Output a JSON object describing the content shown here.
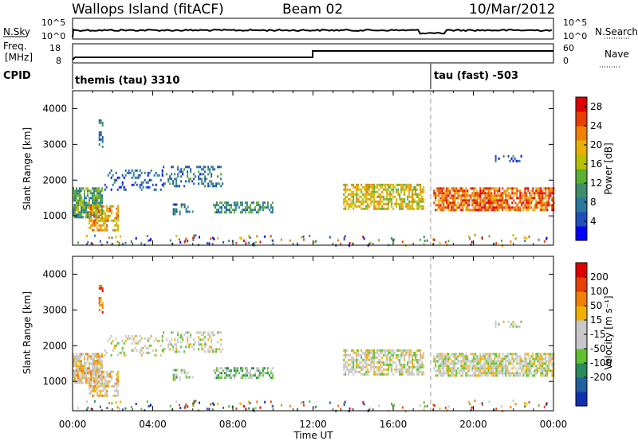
{
  "header": {
    "station": "Wallops Island (fitACF)",
    "beam": "Beam 02",
    "date": "10/Mar/2012"
  },
  "noise_panel": {
    "left_label": "N.Sky",
    "left_ticks": [
      "10^5",
      "10^0"
    ],
    "right_label": "N.Search",
    "right_ticks": [
      "10^5",
      "10^0"
    ]
  },
  "freq_panel": {
    "left_label_line1": "Freq.",
    "left_label_line2": "[MHz]",
    "left_ticks": [
      "18",
      "8"
    ],
    "right_label": "Nave",
    "right_ticks": [
      "60",
      "0"
    ]
  },
  "cpid_panel": {
    "label": "CPID",
    "segments": [
      {
        "text": "themis (tau) 3310",
        "start_hour": 0
      },
      {
        "text": "tau (fast) -503",
        "start_hour": 18
      }
    ]
  },
  "x_axis": {
    "label": "Time UT",
    "ticks": [
      "00:00",
      "04:00",
      "08:00",
      "12:00",
      "16:00",
      "20:00",
      "00:00"
    ]
  },
  "chart_data": [
    {
      "type": "heatmap",
      "panel": "power",
      "xlabel": "Time UT",
      "ylabel": "Slant Range [km]",
      "x_range_hours": [
        0,
        24
      ],
      "ylim": [
        180,
        4500
      ],
      "y_ticks": [
        "4000",
        "3000",
        "2000",
        "1000"
      ],
      "colorbar": {
        "label": "Power [dB]",
        "ticks": [
          "28",
          "24",
          "20",
          "16",
          "12",
          "8",
          "4"
        ],
        "colors": [
          "#0000ff",
          "#1f4fb8",
          "#2a78a0",
          "#3e8e6a",
          "#5ab033",
          "#b8c000",
          "#e8b000",
          "#f08000",
          "#e84000",
          "#e00000"
        ],
        "range": [
          0,
          30
        ]
      },
      "regions": [
        {
          "t": [
            0.0,
            1.5
          ],
          "r": [
            950,
            1800
          ],
          "mean": 12,
          "density": 0.8
        },
        {
          "t": [
            0.8,
            2.3
          ],
          "r": [
            600,
            1300
          ],
          "mean": 20,
          "density": 0.6
        },
        {
          "t": [
            1.3,
            1.5
          ],
          "r": [
            2900,
            3700
          ],
          "mean": 8,
          "density": 0.5
        },
        {
          "t": [
            1.5,
            4.5
          ],
          "r": [
            1700,
            2300
          ],
          "mean": 6,
          "density": 0.25
        },
        {
          "t": [
            4.5,
            7.5
          ],
          "r": [
            1850,
            2400
          ],
          "mean": 8,
          "density": 0.3
        },
        {
          "t": [
            7.0,
            10.0
          ],
          "r": [
            1100,
            1400
          ],
          "mean": 10,
          "density": 0.5
        },
        {
          "t": [
            5.0,
            6.0
          ],
          "r": [
            1050,
            1350
          ],
          "mean": 8,
          "density": 0.4
        },
        {
          "t": [
            13.5,
            17.5
          ],
          "r": [
            1200,
            1900
          ],
          "mean": 18,
          "density": 0.65
        },
        {
          "t": [
            18.0,
            24.0
          ],
          "r": [
            1150,
            1800
          ],
          "mean": 24,
          "density": 0.75
        },
        {
          "t": [
            21.0,
            22.5
          ],
          "r": [
            2500,
            2700
          ],
          "mean": 6,
          "density": 0.3
        }
      ]
    },
    {
      "type": "heatmap",
      "panel": "velocity",
      "xlabel": "Time UT",
      "ylabel": "Slant Range [km]",
      "x_range_hours": [
        0,
        24
      ],
      "ylim": [
        180,
        4500
      ],
      "y_ticks": [
        "4000",
        "3000",
        "2000",
        "1000"
      ],
      "colorbar": {
        "label": "Velocity [m s⁻¹]",
        "ticks": [
          "200",
          "100",
          "50",
          "15",
          "-15",
          "-50",
          "-100",
          "-200"
        ],
        "colors": [
          "#1030b0",
          "#2060a0",
          "#2a8a5a",
          "#60c030",
          "#c8c8c8",
          "#c8c8c8",
          "#f0b000",
          "#f08000",
          "#e84000",
          "#e00000"
        ],
        "range": [
          -250,
          250
        ]
      },
      "regions": [
        {
          "t": [
            0.0,
            1.5
          ],
          "r": [
            950,
            1800
          ],
          "mean": 40,
          "density": 0.8
        },
        {
          "t": [
            0.8,
            2.3
          ],
          "r": [
            600,
            1300
          ],
          "mean": 40,
          "density": 0.6
        },
        {
          "t": [
            1.3,
            1.5
          ],
          "r": [
            2900,
            3700
          ],
          "mean": 150,
          "density": 0.5
        },
        {
          "t": [
            1.5,
            4.5
          ],
          "r": [
            1700,
            2300
          ],
          "mean": 0,
          "density": 0.25
        },
        {
          "t": [
            4.5,
            7.5
          ],
          "r": [
            1850,
            2400
          ],
          "mean": 0,
          "density": 0.3
        },
        {
          "t": [
            7.0,
            10.0
          ],
          "r": [
            1100,
            1400
          ],
          "mean": -60,
          "density": 0.5
        },
        {
          "t": [
            5.0,
            6.0
          ],
          "r": [
            1050,
            1350
          ],
          "mean": -30,
          "density": 0.4
        },
        {
          "t": [
            13.5,
            17.5
          ],
          "r": [
            1200,
            1900
          ],
          "mean": 0,
          "density": 0.65
        },
        {
          "t": [
            18.0,
            24.0
          ],
          "r": [
            1150,
            1800
          ],
          "mean": 0,
          "density": 0.75
        },
        {
          "t": [
            21.0,
            22.5
          ],
          "r": [
            2500,
            2700
          ],
          "mean": 0,
          "density": 0.3
        }
      ]
    }
  ]
}
